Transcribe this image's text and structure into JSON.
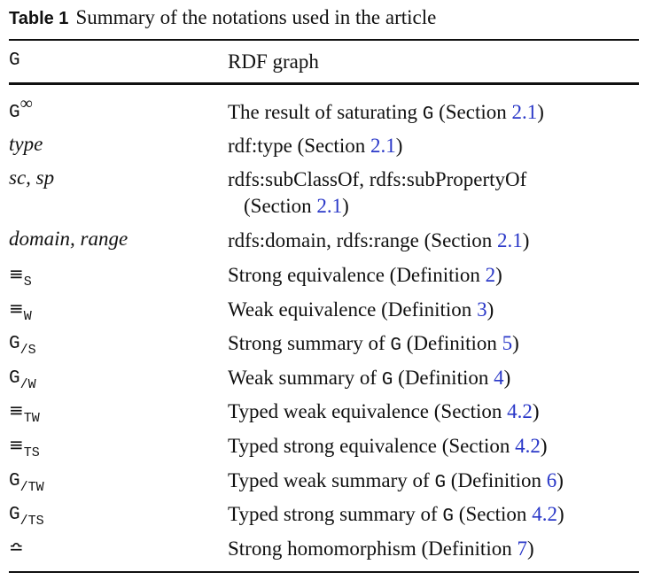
{
  "caption": {
    "label": "Table 1",
    "text": "Summary of the notations used in the article"
  },
  "header": {
    "notation": "G",
    "description": "RDF graph"
  },
  "rows": [
    {
      "sym": "G",
      "sup": "∞",
      "d1": "The result of saturating ",
      "m": "G",
      "d2": " (Section ",
      "ref": "2.1",
      "d3": ")"
    },
    {
      "sym": "type",
      "d1": "rdf:type (Section ",
      "ref": "2.1",
      "d2": ")"
    },
    {
      "sym": "sc, sp",
      "d1": "rdfs:subClassOf, rdfs:subPropertyOf",
      "d2": "(Section ",
      "ref": "2.1",
      "d3": ")"
    },
    {
      "sym": "domain, range",
      "d1": "rdfs:domain, rdfs:range (Section ",
      "ref": "2.1",
      "d2": ")"
    },
    {
      "sym": "≡",
      "sub": "S",
      "d1": "Strong equivalence (Definition ",
      "ref": "2",
      "d2": ")"
    },
    {
      "sym": "≡",
      "sub": "W",
      "d1": "Weak equivalence (Definition ",
      "ref": "3",
      "d2": ")"
    },
    {
      "sym": "G",
      "sub": "/S",
      "d1": "Strong summary of ",
      "m": "G",
      "d2": " (Definition ",
      "ref": "5",
      "d3": ")"
    },
    {
      "sym": "G",
      "sub": "/W",
      "d1": "Weak summary of ",
      "m": "G",
      "d2": " (Definition ",
      "ref": "4",
      "d3": ")"
    },
    {
      "sym": "≡",
      "sub": "TW",
      "d1": "Typed weak equivalence (Section ",
      "ref": "4.2",
      "d2": ")"
    },
    {
      "sym": "≡",
      "sub": "TS",
      "d1": "Typed strong equivalence (Section ",
      "ref": "4.2",
      "d2": ")"
    },
    {
      "sym": "G",
      "sub": "/TW",
      "d1": "Typed weak summary of ",
      "m": "G",
      "d2": " (Definition ",
      "ref": "6",
      "d3": ")"
    },
    {
      "sym": "G",
      "sub": "/TS",
      "d1": "Typed strong summary of ",
      "m": "G",
      "d2": " (Section ",
      "ref": "4.2",
      "d3": ")"
    },
    {
      "sym": "≏",
      "d1": "Strong homomorphism (Definition ",
      "ref": "7",
      "d2": ")"
    }
  ]
}
